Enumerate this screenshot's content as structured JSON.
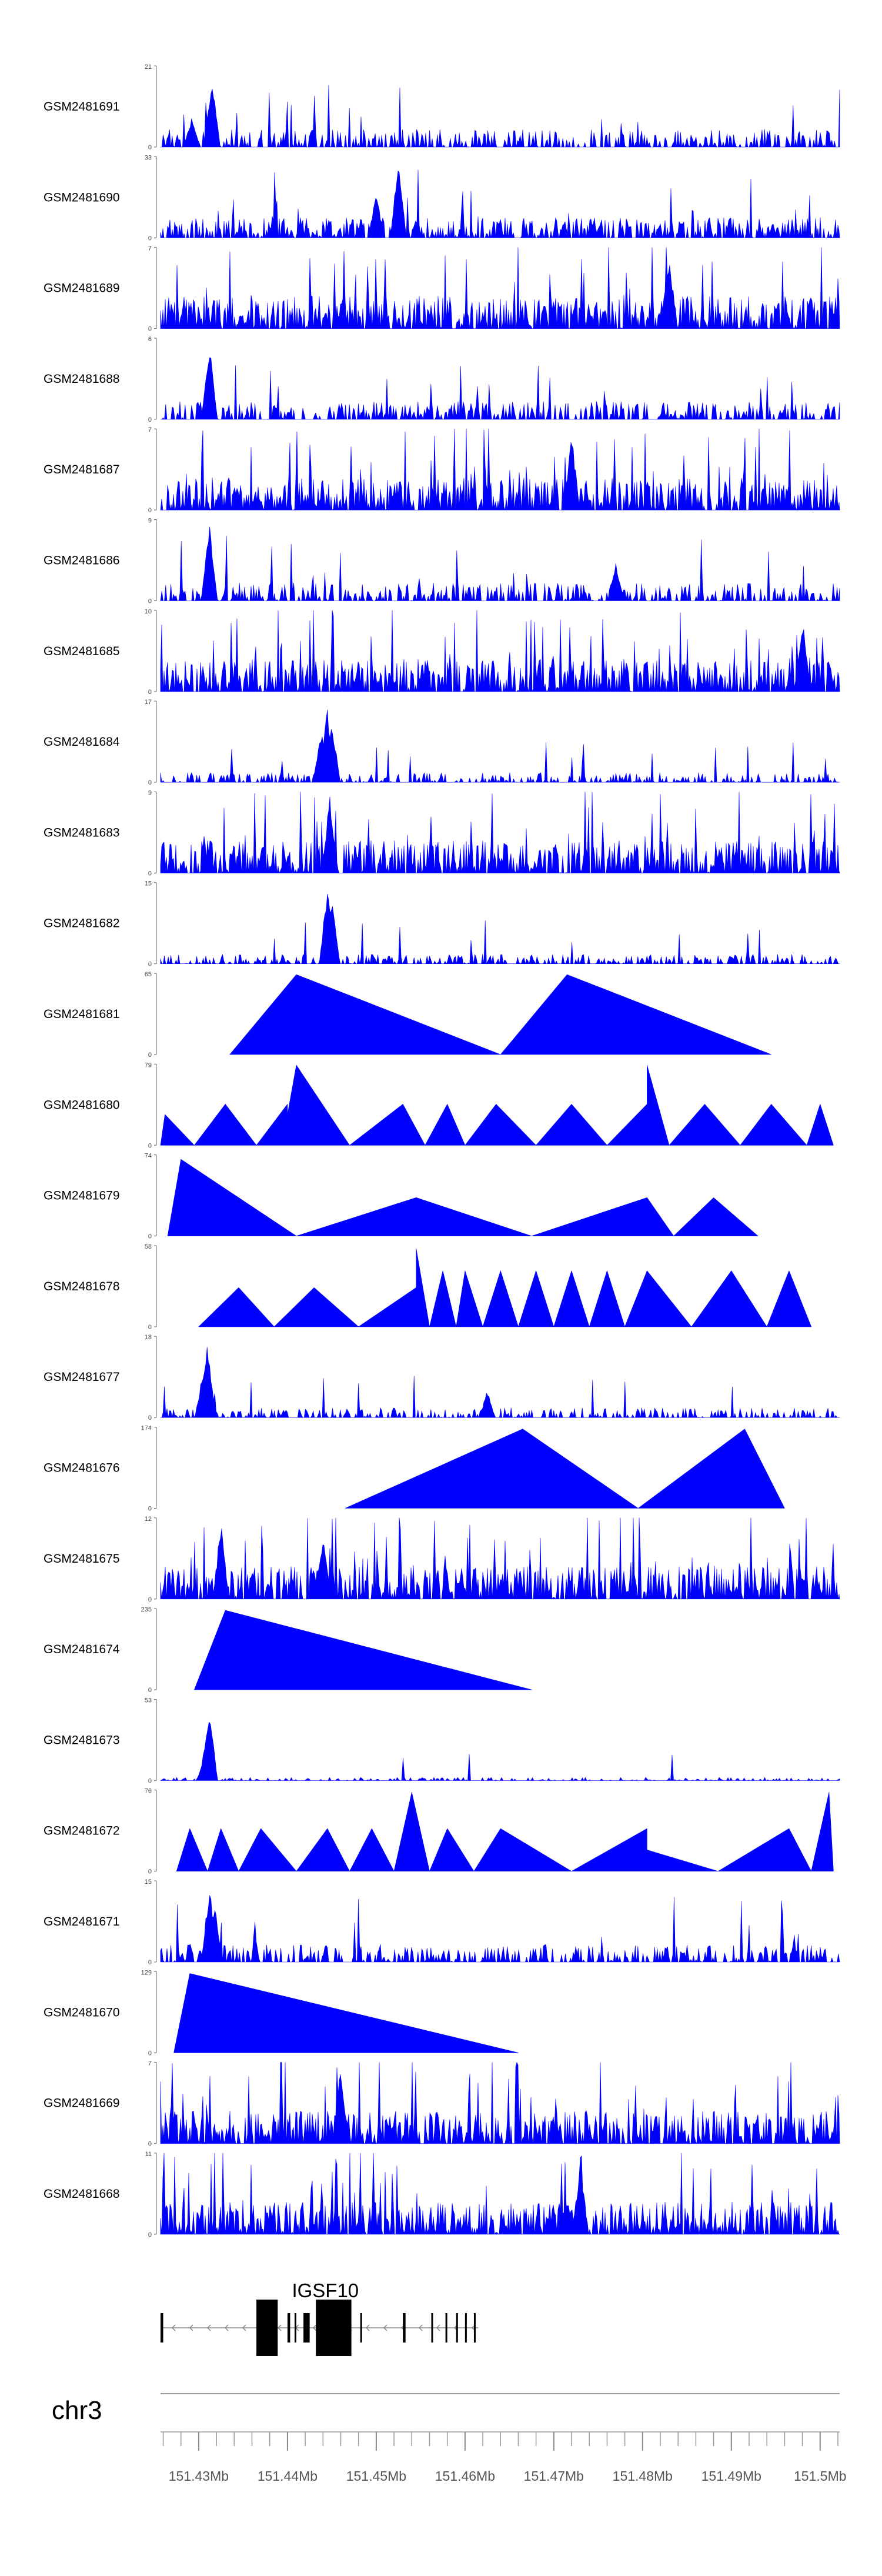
{
  "chart_data": {
    "type": "area",
    "title": "",
    "chromosome": "chr3",
    "xlabel": "",
    "ylabel": "",
    "fill_color": "#0000ff",
    "region_mb": [
      151.4257,
      151.5022
    ],
    "tracks": [
      {
        "name": "GSM2481691",
        "ymax": "21",
        "y0": "0",
        "profile": "noise",
        "peaks": [
          [
            151.4315,
            20
          ],
          [
            151.4292,
            8
          ]
        ]
      },
      {
        "name": "GSM2481690",
        "ymax": "33",
        "y0": "0",
        "profile": "sparse",
        "peaks": [
          [
            151.4525,
            30
          ],
          [
            151.45,
            18
          ]
        ]
      },
      {
        "name": "GSM2481689",
        "ymax": "7",
        "y0": "0",
        "profile": "dense",
        "peaks": [
          [
            151.483,
            6.5
          ]
        ]
      },
      {
        "name": "GSM2481688",
        "ymax": "6",
        "y0": "0",
        "profile": "noise",
        "peaks": [
          [
            151.4312,
            5.8
          ]
        ]
      },
      {
        "name": "GSM2481687",
        "ymax": "7",
        "y0": "0",
        "profile": "dense",
        "peaks": [
          [
            151.472,
            6.8
          ]
        ]
      },
      {
        "name": "GSM2481686",
        "ymax": "9",
        "y0": "0",
        "profile": "noise",
        "peaks": [
          [
            151.4312,
            8.6
          ],
          [
            151.477,
            4.5
          ]
        ]
      },
      {
        "name": "GSM2481685",
        "ymax": "10",
        "y0": "0",
        "profile": "dense",
        "peaks": [
          [
            151.498,
            9.5
          ]
        ]
      },
      {
        "name": "GSM2481684",
        "ymax": "17",
        "y0": "0",
        "profile": "noise_low",
        "peaks": [
          [
            151.4445,
            16.5
          ],
          [
            151.445,
            14
          ],
          [
            151.4438,
            11
          ]
        ]
      },
      {
        "name": "GSM2481683",
        "ymax": "9",
        "y0": "0",
        "profile": "dense",
        "peaks": [
          [
            151.4448,
            8.7
          ]
        ]
      },
      {
        "name": "GSM2481682",
        "ymax": "15",
        "y0": "0",
        "profile": "noise_low",
        "peaks": [
          [
            151.4445,
            14.5
          ],
          [
            151.445,
            12
          ]
        ]
      },
      {
        "name": "GSM2481681",
        "ymax": "65",
        "y0": "0",
        "profile": "segments",
        "segments": [
          [
            151.4335,
            0
          ],
          [
            151.441,
            64
          ],
          [
            151.464,
            0
          ],
          [
            151.4715,
            64
          ],
          [
            151.4945,
            0
          ]
        ]
      },
      {
        "name": "GSM2481680",
        "ymax": "79",
        "y0": "0",
        "profile": "segments",
        "segments": [
          [
            151.4257,
            0
          ],
          [
            151.4262,
            30
          ],
          [
            151.4295,
            0
          ],
          [
            151.433,
            40
          ],
          [
            151.4365,
            0
          ],
          [
            151.44,
            40
          ],
          [
            151.44,
            30
          ],
          [
            151.441,
            78
          ],
          [
            151.447,
            0
          ],
          [
            151.453,
            40
          ],
          [
            151.4555,
            0
          ],
          [
            151.458,
            40
          ],
          [
            151.46,
            0
          ],
          [
            151.4635,
            40
          ],
          [
            151.468,
            0
          ],
          [
            151.472,
            40
          ],
          [
            151.476,
            0
          ],
          [
            151.4805,
            40
          ],
          [
            151.4805,
            78
          ],
          [
            151.483,
            0
          ],
          [
            151.487,
            40
          ],
          [
            151.491,
            0
          ],
          [
            151.4945,
            40
          ],
          [
            151.4985,
            0
          ],
          [
            151.5,
            40
          ],
          [
            151.5015,
            0
          ]
        ]
      },
      {
        "name": "GSM2481679",
        "ymax": "74",
        "y0": "0",
        "profile": "segments",
        "segments": [
          [
            151.4265,
            0
          ],
          [
            151.428,
            70
          ],
          [
            151.441,
            0
          ],
          [
            151.4545,
            35
          ],
          [
            151.4675,
            0
          ],
          [
            151.4805,
            35
          ],
          [
            151.4835,
            0
          ],
          [
            151.488,
            35
          ],
          [
            151.493,
            0
          ]
        ]
      },
      {
        "name": "GSM2481678",
        "ymax": "58",
        "y0": "0",
        "profile": "segments",
        "segments": [
          [
            151.43,
            0
          ],
          [
            151.4345,
            28
          ],
          [
            151.4385,
            0
          ],
          [
            151.443,
            28
          ],
          [
            151.448,
            0
          ],
          [
            151.4545,
            28
          ],
          [
            151.4545,
            56
          ],
          [
            151.456,
            0
          ],
          [
            151.4575,
            40
          ],
          [
            151.459,
            0
          ],
          [
            151.46,
            40
          ],
          [
            151.462,
            0
          ],
          [
            151.464,
            40
          ],
          [
            151.466,
            0
          ],
          [
            151.468,
            40
          ],
          [
            151.47,
            0
          ],
          [
            151.472,
            40
          ],
          [
            151.474,
            0
          ],
          [
            151.476,
            40
          ],
          [
            151.478,
            0
          ],
          [
            151.4805,
            40
          ],
          [
            151.4855,
            0
          ],
          [
            151.49,
            40
          ],
          [
            151.494,
            0
          ],
          [
            151.4965,
            40
          ],
          [
            151.499,
            0
          ]
        ]
      },
      {
        "name": "GSM2481677",
        "ymax": "18",
        "y0": "0",
        "profile": "noise_low",
        "peaks": [
          [
            151.431,
            17.5
          ],
          [
            151.4305,
            11
          ],
          [
            151.4625,
            6
          ]
        ]
      },
      {
        "name": "GSM2481676",
        "ymax": "174",
        "y0": "0",
        "profile": "segments",
        "segments": [
          [
            151.4465,
            0
          ],
          [
            151.4665,
            170
          ],
          [
            151.4795,
            0
          ],
          [
            151.4915,
            170
          ],
          [
            151.496,
            0
          ]
        ]
      },
      {
        "name": "GSM2481675",
        "ymax": "12",
        "y0": "0",
        "profile": "dense",
        "peaks": [
          [
            151.4325,
            11.5
          ],
          [
            151.444,
            10
          ]
        ]
      },
      {
        "name": "GSM2481674",
        "ymax": "235",
        "y0": "0",
        "profile": "segments",
        "segments": [
          [
            151.4295,
            0
          ],
          [
            151.433,
            230
          ],
          [
            151.4675,
            0
          ]
        ]
      },
      {
        "name": "GSM2481673",
        "ymax": "53",
        "y0": "0",
        "profile": "noise_tiny",
        "peaks": [
          [
            151.4312,
            52
          ],
          [
            151.4308,
            25
          ]
        ]
      },
      {
        "name": "GSM2481672",
        "ymax": "76",
        "y0": "0",
        "profile": "segments",
        "segments": [
          [
            151.4275,
            0
          ],
          [
            151.429,
            40
          ],
          [
            151.431,
            0
          ],
          [
            151.4325,
            40
          ],
          [
            151.4345,
            0
          ],
          [
            151.437,
            40
          ],
          [
            151.441,
            0
          ],
          [
            151.4445,
            40
          ],
          [
            151.447,
            0
          ],
          [
            151.4495,
            40
          ],
          [
            151.452,
            0
          ],
          [
            151.454,
            74
          ],
          [
            151.456,
            0
          ],
          [
            151.458,
            40
          ],
          [
            151.461,
            0
          ],
          [
            151.464,
            40
          ],
          [
            151.472,
            0
          ],
          [
            151.4805,
            40
          ],
          [
            151.4805,
            20
          ],
          [
            151.4885,
            0
          ],
          [
            151.4965,
            40
          ],
          [
            151.499,
            0
          ],
          [
            151.501,
            74
          ],
          [
            151.5015,
            0
          ]
        ]
      },
      {
        "name": "GSM2481671",
        "ymax": "15",
        "y0": "0",
        "profile": "noise",
        "peaks": [
          [
            151.4312,
            14.5
          ],
          [
            151.4318,
            10
          ]
        ]
      },
      {
        "name": "GSM2481670",
        "ymax": "129",
        "y0": "0",
        "profile": "segments",
        "segments": [
          [
            151.4272,
            0
          ],
          [
            151.429,
            126
          ],
          [
            151.466,
            0
          ]
        ]
      },
      {
        "name": "GSM2481669",
        "ymax": "7",
        "y0": "0",
        "profile": "dense",
        "peaks": [
          [
            151.446,
            6.8
          ]
        ]
      },
      {
        "name": "GSM2481668",
        "ymax": "11",
        "y0": "0",
        "profile": "dense",
        "peaks": [
          [
            151.473,
            10.5
          ]
        ]
      }
    ],
    "gene": {
      "name": "IGSF10",
      "strand": "-",
      "start_mb": 151.4257,
      "end_mb": 151.4615,
      "exons_mb": [
        [
          151.4257,
          151.426
        ],
        [
          151.4366,
          151.4368
        ],
        [
          151.437,
          151.4372
        ],
        [
          151.4365,
          151.4389
        ],
        [
          151.44,
          151.4403
        ],
        [
          151.4408,
          151.441
        ],
        [
          151.4418,
          151.4425
        ],
        [
          151.4432,
          151.4472
        ],
        [
          151.4482,
          151.4484
        ],
        [
          151.453,
          151.4533
        ],
        [
          151.4562,
          151.4564
        ],
        [
          151.4578,
          151.458
        ],
        [
          151.459,
          151.4592
        ],
        [
          151.46,
          151.4602
        ],
        [
          151.461,
          151.4612
        ]
      ]
    },
    "axis": {
      "tick_labels": [
        "151.43Mb",
        "151.44Mb",
        "151.45Mb",
        "151.46Mb",
        "151.47Mb",
        "151.48Mb",
        "151.49Mb",
        "151.5Mb"
      ],
      "label_values": [
        151.43,
        151.44,
        151.45,
        151.46,
        151.47,
        151.48,
        151.49,
        151.5
      ],
      "minor_step_mb": 0.002
    }
  }
}
